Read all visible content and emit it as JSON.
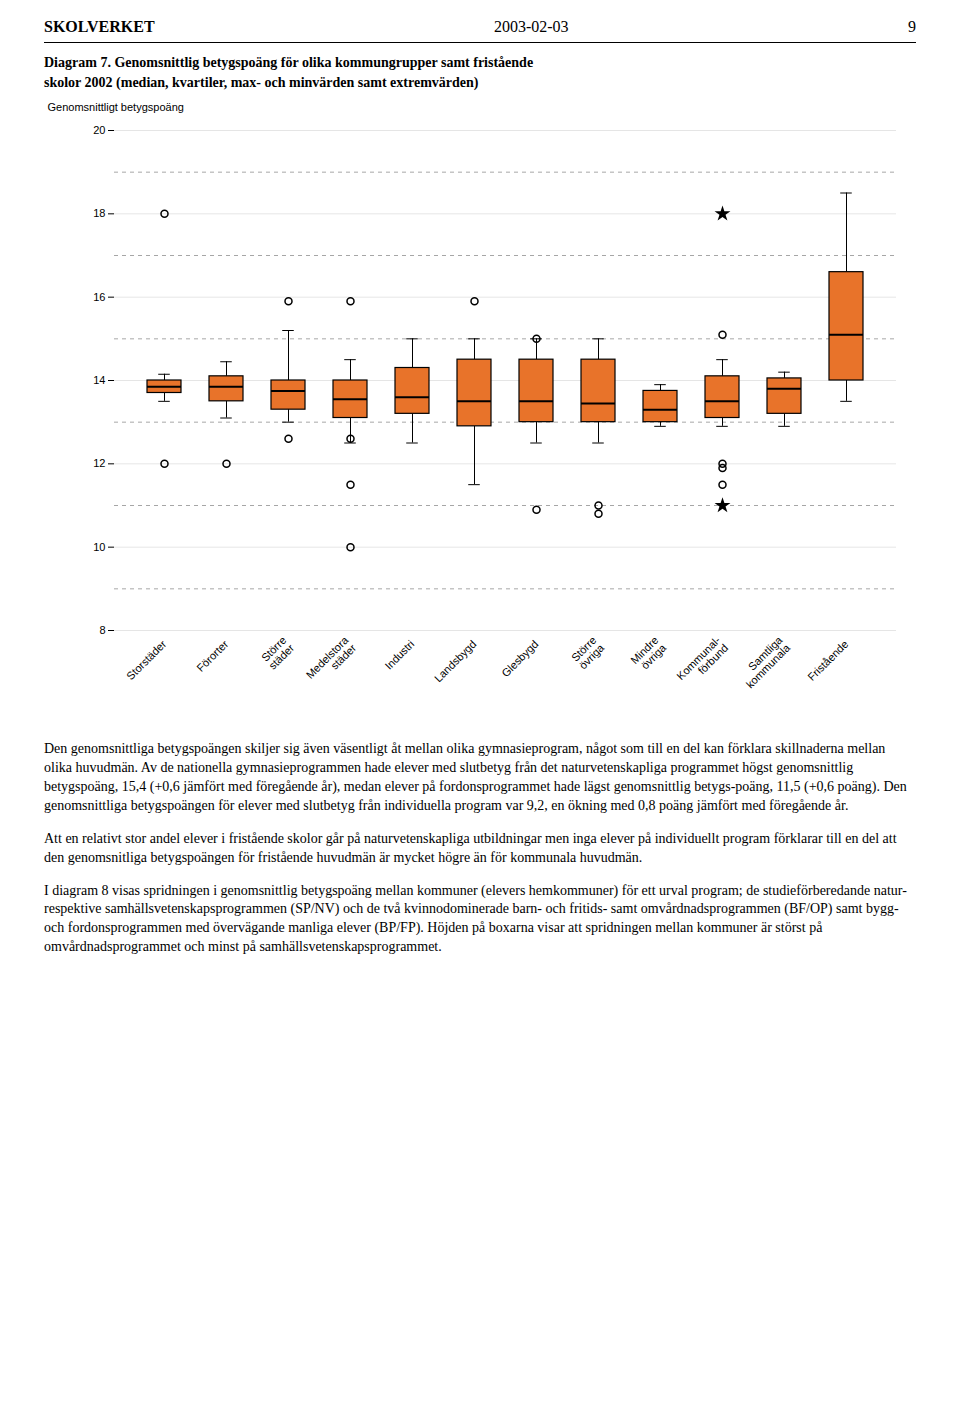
{
  "header": {
    "left": "SKOLVERKET",
    "center": "2003-02-03",
    "right": "9"
  },
  "chart_data": {
    "type": "box",
    "title": "Diagram 7. Genomsnittlig betygspoäng för olika kommungrupper samt fristående\nskolor 2002 (median, kvartiler, max- och minvärden samt extremvärden)",
    "ylabel": "Genomsnittligt betygspoäng",
    "ylim": [
      8,
      20
    ],
    "yticks": [
      8,
      10,
      12,
      14,
      16,
      18,
      20
    ],
    "grid": true,
    "dashed_lines": [
      9,
      11,
      13,
      15,
      17,
      19
    ],
    "color": "#E8732A",
    "categories": [
      "Storstäder",
      "Förorter",
      "Större\nstäder",
      "Medelstora\nstäder",
      "Industri",
      "Landsbygd",
      "Glesbygd",
      "Större\növriga",
      "Mindre\növriga",
      "Kommunal-\nförbund",
      "Samtliga\nkommunala",
      "Fristående"
    ],
    "boxes": [
      {
        "q1": 13.7,
        "median": 13.85,
        "q3": 14.0,
        "whislo": 13.5,
        "whishi": 14.15,
        "outliers": [
          12.0,
          18.0
        ],
        "extremes": []
      },
      {
        "q1": 13.5,
        "median": 13.85,
        "q3": 14.1,
        "whislo": 13.1,
        "whishi": 14.45,
        "outliers": [
          12.0
        ],
        "extremes": []
      },
      {
        "q1": 13.3,
        "median": 13.75,
        "q3": 14.0,
        "whislo": 13.0,
        "whishi": 15.2,
        "outliers": [
          12.6,
          15.9
        ],
        "extremes": []
      },
      {
        "q1": 13.1,
        "median": 13.55,
        "q3": 14.0,
        "whislo": 12.5,
        "whishi": 14.5,
        "outliers": [
          12.6,
          11.5,
          10.0,
          15.9
        ],
        "extremes": []
      },
      {
        "q1": 13.2,
        "median": 13.6,
        "q3": 14.3,
        "whislo": 12.5,
        "whishi": 15.0,
        "outliers": [],
        "extremes": []
      },
      {
        "q1": 12.9,
        "median": 13.5,
        "q3": 14.5,
        "whislo": 11.5,
        "whishi": 15.0,
        "outliers": [
          15.9
        ],
        "extremes": []
      },
      {
        "q1": 13.0,
        "median": 13.5,
        "q3": 14.5,
        "whislo": 12.5,
        "whishi": 15.0,
        "outliers": [
          10.9,
          15.0
        ],
        "extremes": []
      },
      {
        "q1": 13.0,
        "median": 13.45,
        "q3": 14.5,
        "whislo": 12.5,
        "whishi": 15.0,
        "outliers": [
          11.0,
          10.8
        ],
        "extremes": []
      },
      {
        "q1": 13.0,
        "median": 13.3,
        "q3": 13.75,
        "whislo": 12.9,
        "whishi": 13.9,
        "outliers": [],
        "extremes": []
      },
      {
        "q1": 13.1,
        "median": 13.5,
        "q3": 14.1,
        "whislo": 12.9,
        "whishi": 14.5,
        "outliers": [
          12.0,
          11.9,
          11.5,
          15.1
        ],
        "extremes": [
          11.0,
          18.0
        ]
      },
      {
        "q1": 13.2,
        "median": 13.8,
        "q3": 14.05,
        "whislo": 12.9,
        "whishi": 14.2,
        "outliers": [],
        "extremes": []
      },
      {
        "q1": 14.0,
        "median": 15.1,
        "q3": 16.6,
        "whislo": 13.5,
        "whishi": 18.5,
        "outliers": [],
        "extremes": []
      }
    ]
  },
  "paragraphs": [
    "Den genomsnittliga betygspoängen skiljer sig även väsentligt åt mellan olika gymnasieprogram, något som till en del kan förklara skillnaderna mellan olika huvudmän. Av de nationella gymnasieprogrammen hade elever med slutbetyg från det naturvetenskapliga programmet högst genomsnittlig betygspoäng, 15,4 (+0,6 jämfört med föregående år), medan elever på fordonsprogrammet hade lägst genomsnittlig betygs-poäng, 11,5 (+0,6 poäng). Den genomsnittliga betygspoängen för elever med slutbetyg från individuella program var 9,2, en ökning med 0,8 poäng jämfört med föregående år.",
    "Att en relativt stor andel elever i fristående skolor går på naturvetenskapliga utbildningar men inga elever på individuellt program förklarar till en del att den genomsnitliga betygspoängen för fristående huvudmän är mycket högre än för kommunala huvudmän.",
    "I diagram 8 visas spridningen i genomsnittlig betygspoäng mellan kommuner (elevers hemkommuner) för ett urval program; de studieförberedande natur- respektive samhällsvetenskapsprogrammen (SP/NV) och de två kvinnodominerade barn- och fritids- samt omvårdnadsprogrammen (BF/OP) samt bygg- och fordonsprogrammen med övervägande manliga elever (BP/FP). Höjden på boxarna visar att spridningen mellan kommuner är störst på omvårdnadsprogrammet och minst på samhällsvetenskapsprogrammet."
  ]
}
